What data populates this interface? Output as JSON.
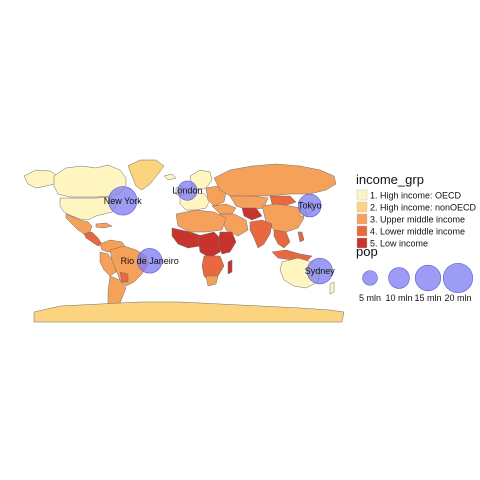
{
  "chart_data": {
    "type": "map",
    "fill_legend": {
      "title": "income_grp",
      "items": [
        {
          "label": "1. High income: OECD",
          "color": "#FFF5C0"
        },
        {
          "label": "2. High income: nonOECD",
          "color": "#FCD47F"
        },
        {
          "label": "3. Upper middle income",
          "color": "#F6A15A"
        },
        {
          "label": "4. Lower middle income",
          "color": "#E8683F"
        },
        {
          "label": "5. Low income",
          "color": "#C8342C"
        }
      ]
    },
    "size_legend": {
      "title": "pop",
      "items": [
        {
          "label": "5 mln",
          "value": 5
        },
        {
          "label": "10 mln",
          "value": 10
        },
        {
          "label": "15 mln",
          "value": 15
        },
        {
          "label": "20 mln",
          "value": 20
        }
      ]
    },
    "bubble_color": "#7B7BF0",
    "cities": [
      {
        "name": "New York",
        "pop": 18.8
      },
      {
        "name": "London",
        "pop": 8.6
      },
      {
        "name": "Tokyo",
        "pop": 12
      },
      {
        "name": "Rio de Janeiro",
        "pop": 14
      },
      {
        "name": "Sydney",
        "pop": 15
      }
    ]
  }
}
